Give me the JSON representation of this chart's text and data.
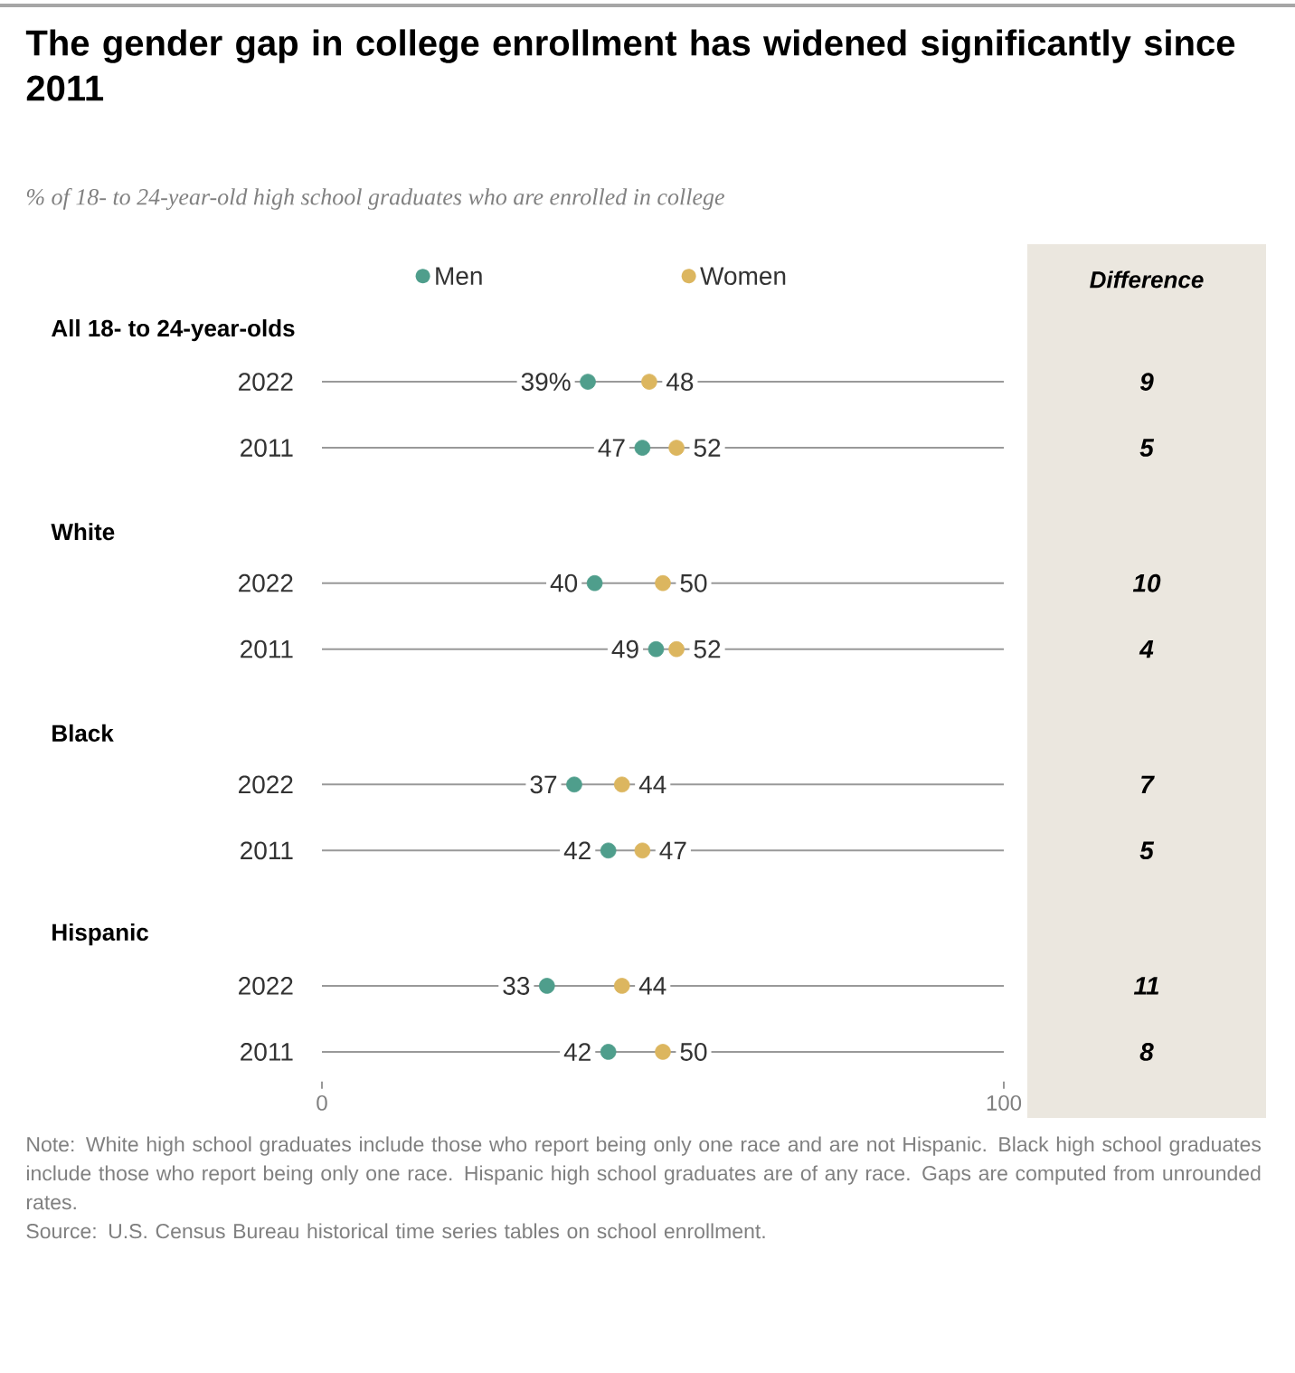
{
  "chart_data": {
    "type": "scatter",
    "orientation": "horizontal",
    "title": "The gender gap in college enrollment has widened significantly since 2011",
    "subtitle": "% of 18- to 24-year-old high school graduates who are enrolled in college",
    "categories": [
      "2022",
      "2011",
      "2022",
      "2011",
      "2022",
      "2011",
      "2022",
      "2011"
    ],
    "series": [
      {
        "name": "Men",
        "color": "#4f9e8c",
        "values": [
          39,
          47,
          40,
          49,
          37,
          42,
          33,
          42
        ],
        "value_labels": [
          "39%",
          "47",
          "40",
          "49",
          "37",
          "42",
          "33",
          "42"
        ]
      },
      {
        "name": "Women",
        "color": "#dcb65f",
        "values": [
          48,
          52,
          50,
          52,
          44,
          47,
          44,
          50
        ],
        "value_labels": [
          "48",
          "52",
          "50",
          "52",
          "44",
          "47",
          "44",
          "50"
        ]
      }
    ],
    "xlim": [
      0,
      100
    ],
    "xticks": [
      0,
      100
    ],
    "grid": "y",
    "legend": "top",
    "marker": "circle",
    "annotations": [
      "All 18- to 24-year-olds",
      "White",
      "Black",
      "Hispanic",
      "Difference",
      "9",
      "5",
      "10",
      "4",
      "7",
      "5",
      "11",
      "8",
      "Note: White high school graduates include those who report being only one race and are not Hispanic. Black high school graduates include those who report being only one race. Hispanic high school graduates are of any race. Gaps are computed from unrounded rates.",
      "Source: U.S. Census Bureau historical time series tables on school enrollment."
    ]
  }
}
